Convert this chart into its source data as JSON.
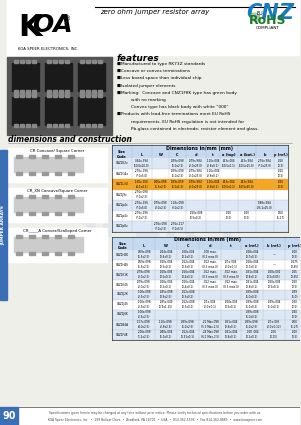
{
  "bg_color": "#efefea",
  "title_cnz": "CNZ",
  "title_cnz_color": "#1a7abf",
  "subtitle": "zero ohm jumper resistor array",
  "features_title": "features",
  "features": [
    [
      "bullet",
      "Manufactured to type RK73Z standards"
    ],
    [
      "bullet",
      "Concave or convex terminations"
    ],
    [
      "bullet",
      "Less board space than individual chip"
    ],
    [
      "bullet",
      "Isolated jumper elements"
    ],
    [
      "bullet",
      "Marking:  Concave and CNZ1F8K type has green body"
    ],
    [
      "indent",
      "with no marking"
    ],
    [
      "indent",
      "Convex type has black body with white “000”"
    ],
    [
      "bullet",
      "Products with lead-free terminations meet EU RoHS"
    ],
    [
      "indent",
      "requirements. EU RoHS regulation is not intended for"
    ],
    [
      "indent",
      "Pb-glass contained in electrode, resistor element and glass."
    ]
  ],
  "dim_title": "dimensions and construction",
  "left_tab_color": "#3b6eb5",
  "left_tab_text": "JUMPER ARRAYS",
  "table_header_color": "#c5d9f1",
  "highlight_row_color": "#f5a623",
  "footer_text": "Specifications given herein may be changed at any time without prior notice. Please verify technical specifications before you order with us.",
  "page_num": "90",
  "company": "KOA Speer Electronics, Inc.  •  199 Bolivar Drive  •  Bradford, PA 16701  •  USA  •  814-362-5536  •  Fax 814-362-8883  •  www.koaspeer.com",
  "t1_col_labels": [
    "Size\nCode",
    "L",
    "W",
    "C",
    "d",
    "t",
    "a (top)",
    "a (bot.)",
    "b",
    "p (ref.)"
  ],
  "t1_col_widths": [
    20,
    20,
    17,
    17,
    20,
    14,
    18,
    18,
    18,
    14
  ],
  "t1_rows": [
    [
      "CNZ2E2x",
      ".394x.394\n(10.0x10.0)",
      "",
      ".039x.098\n(1.0x2.5)",
      ".079x.984\n(2.0x25.0)",
      ".110x.004\n(2.8x0.1)",
      ".413x.004\n(10.5x0.1)",
      ".413x.984\n(10.5x25.0)",
      ".276x.984\n(7.0x25.0)",
      ".020\n(0.5)"
    ],
    [
      "CNZ1G4x",
      ".276x.196\n(7.0x5.0)",
      "",
      ".039x.098\n(1.0x2.5)",
      ".079x.984\n(2.0x25.0)",
      ".110x.004\n(2.8x0.1)",
      "",
      "",
      "",
      ".020\n(0.5)"
    ],
    [
      "CNZ1L3U",
      ".160x.160\n(4.1x4.1)",
      ".060x.098\n(1.5x2.5)",
      ".039x.059\n(1.0x1.5)",
      ".079x.984\n(2.0x25.0)",
      ".110x.004\n(2.8x0.1)",
      ".413x.004\n(10.5x0.1)",
      ".413x.984\n(10.5x25.0)",
      "",
      ".020\n(0.5)"
    ],
    [
      "CNZ1J9x",
      ".276x.098\n(7.0x2.5)",
      "",
      "",
      "",
      "",
      "",
      "",
      "",
      ""
    ],
    [
      "CNZ2p4x",
      ".276x.196\n(7.0x5.0)",
      ".079x.098\n(2.0x2.5)",
      ".118x.098\n(3.0x2.5)",
      "",
      "",
      "",
      "",
      ".988x.984\n(25.1x25.0)",
      ""
    ],
    [
      "CNZ2p4x",
      ".276x.296\n(7.0x7.5)",
      "",
      "",
      ".020x.008\n(0.5x0.2)",
      "",
      ".020\n(0.5)",
      ".020\n(0.5)",
      "",
      ".050\n(1.27)"
    ],
    [
      "CNZ2p8x",
      "",
      ".276x.098\n(7.0x2.5)",
      ".276x.217\n(7.0x5.5)",
      "",
      "",
      "",
      "",
      "",
      ""
    ]
  ],
  "t2_col_labels": [
    "Size\nCode",
    "L",
    "W",
    "C",
    "d",
    "t",
    "a (ref.)",
    "b (ref.)",
    "p (ref.)"
  ],
  "t2_col_widths": [
    21,
    22,
    22,
    22,
    22,
    20,
    22,
    22,
    19
  ],
  "t2_rows": [
    [
      "CNZ1H2K",
      ".059x.098\n(1.5x2.5)",
      ".024x.004\n(0.6x0.1)",
      ".008x.004\n(0.2x0.1)",
      ".008 max.\n(0.2 max.0)",
      "",
      ".028x.004\n(0.7x0.1)",
      "—",
      ".020\n(0.5)"
    ],
    [
      "CNZ1H4S",
      ".059x.098\n(1.5x2.5)",
      ".020x.004\n(0.5x0.1)",
      ".012x.004\n(0.3x0.1)",
      ".012 max.\n(0.3 max.0)",
      ".07±.004\n(2.0±0.1)",
      ".028x.004\n(0.7x0.1)",
      "—",
      ".0175\n(0.45)"
    ],
    [
      "CNZ1E1K",
      ".079x.098\n(2.0x2.5)",
      ".020x.004\n(0.5x0.1)",
      ".016x.004\n(0.4x0.1)",
      ".012 max.\n(0.3 max.0)",
      ".012 max.\n(0.3 max.0)",
      ".031x.004\n(0.8x0.1)",
      ".020x.002\n(0.5x0.05)",
      ".025\n(0.65)"
    ],
    [
      "CNZ1E4S",
      ".079x.098\n(2.0x2.5)",
      ".020x.004\n(0.5x0.1)",
      ".016x.004\n(0.4x0.1)",
      ".012 max.\n(0.3 max.0)",
      ".012 max.\n(0.3 max.0)",
      ".031x.004\n(0.8x0.1)",
      ".020x.004\n(0.5x0.1)",
      ".020\n(0.5)"
    ],
    [
      "CNZ1J2K",
      ".100x.098\n(2.5x2.5)",
      ".035x.098\n(0.9x2.5)",
      ".012x.008\n(0.3x0.2)",
      "",
      "",
      ".039x.008\n(1.0x0.2)",
      "",
      ".039\n(1.0)"
    ],
    [
      "CNZ1J4S",
      ".100x.098\n(2.5x2.5)",
      ".035x.049\n(0.9x1.25)",
      ".012x.008\n(0.3x0.2)",
      ".07±.004\n(2.0±0.1)",
      ".020x.004\n(0.5x0.1)",
      ".039x.008\n(1.0x0.2)",
      ".039x.004\n(1.0x0.1)",
      ".020\n(0.5)"
    ],
    [
      "CNZ1J6K",
      ".100x.098\n(2.5x2.5)",
      "",
      "",
      "",
      "",
      ".039x.008\n(1.0x0.2)",
      "",
      ".020\n(0.5)"
    ],
    [
      "CNZ2B4A",
      ".157x.098\n(4.0x2.5)",
      ".110x.098\n(2.8x2.5)",
      ".039x.098\n(1.0x2.5)",
      ".21 Max.098\n(5.3 Max.2.5)",
      ".031x.004\n(0.8x0.1)",
      ".039x.098\n(1.0x2.5)",
      ".07±.005\n(2.0±0.12)",
      ".050\n(1.27)"
    ],
    [
      "CNZ1F4K",
      ".200x.098\n(5.1x2.5)",
      ".040x.004\n(1.0x0.1)",
      ".012x.004\n(0.31x0.1)",
      ".24 Max.098\n(6.1 Max.2.5)",
      ".031x.004\n(0.8x0.1)",
      ".008 .004\n(0.2x0.1)",
      ".006\n(0.15)",
      ".020\n(0.5)"
    ]
  ]
}
